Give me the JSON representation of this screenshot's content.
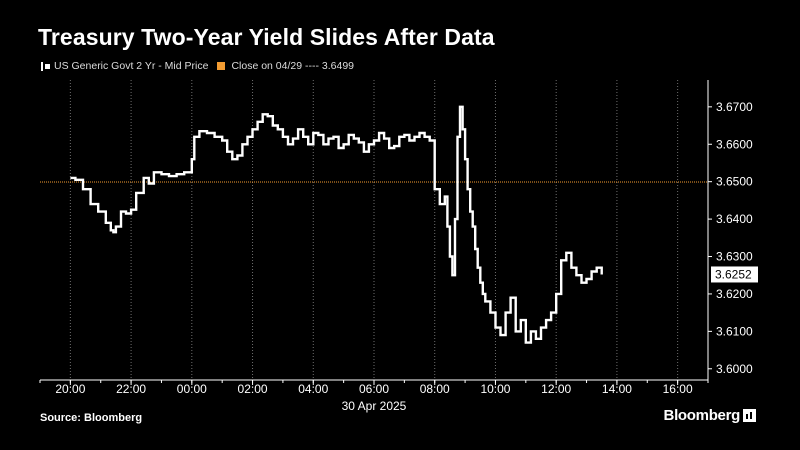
{
  "title": "Treasury Two-Year Yield Slides After Data",
  "legend": {
    "series_label": "US Generic Govt 2 Yr - Mid Price",
    "reference_label": "Close on 04/29 ---- 3.6499"
  },
  "source": "Source: Bloomberg",
  "brand": "Bloomberg",
  "colors": {
    "background": "#000000",
    "series": "#ffffff",
    "reference": "#f39c32",
    "grid": "#6e6e6e",
    "last_label_bg": "#ffffff",
    "last_label_text": "#000000"
  },
  "icons": {
    "series_legend": "series-swatch-icon",
    "reference_legend": "orange-square-icon",
    "brand_mark": "bloomberg-logo-icon"
  },
  "chart_data": {
    "type": "line",
    "title": "Treasury Two-Year Yield Slides After Data",
    "xlabel": "30 Apr 2025",
    "ylabel": "",
    "x_ticks": [
      "20:00",
      "22:00",
      "00:00",
      "02:00",
      "04:00",
      "06:00",
      "08:00",
      "10:00",
      "12:00",
      "14:00",
      "16:00"
    ],
    "x_range": [
      "19:00",
      "17:00"
    ],
    "y_ticks": [
      "3.6000",
      "3.6100",
      "3.6200",
      "3.6300",
      "3.6400",
      "3.6500",
      "3.6600",
      "3.6700"
    ],
    "ylim": [
      3.597,
      3.6745
    ],
    "grid": "vertical dotted",
    "legend_position": "top-left",
    "reference_line": {
      "name": "Close on 04/29",
      "value": 3.6499
    },
    "last_value_label": "3.6252",
    "series": [
      {
        "name": "US Generic Govt 2 Yr - Mid Price",
        "x": [
          "20:00",
          "20:10",
          "20:25",
          "20:40",
          "20:55",
          "21:10",
          "21:20",
          "21:25",
          "21:30",
          "21:40",
          "21:50",
          "22:00",
          "22:10",
          "22:25",
          "22:35",
          "22:45",
          "23:00",
          "23:15",
          "23:30",
          "23:45",
          "00:00",
          "00:05",
          "00:15",
          "00:30",
          "00:45",
          "01:00",
          "01:10",
          "01:20",
          "01:30",
          "01:40",
          "01:50",
          "02:00",
          "02:10",
          "02:20",
          "02:30",
          "02:40",
          "02:50",
          "03:00",
          "03:10",
          "03:20",
          "03:30",
          "03:40",
          "03:50",
          "04:00",
          "04:10",
          "04:20",
          "04:30",
          "04:40",
          "04:50",
          "05:00",
          "05:10",
          "05:20",
          "05:30",
          "05:40",
          "05:50",
          "06:00",
          "06:10",
          "06:20",
          "06:30",
          "06:40",
          "06:50",
          "07:00",
          "07:10",
          "07:20",
          "07:30",
          "07:40",
          "07:50",
          "08:00",
          "08:10",
          "08:20",
          "08:25",
          "08:30",
          "08:35",
          "08:40",
          "08:45",
          "08:50",
          "08:55",
          "09:00",
          "09:05",
          "09:10",
          "09:15",
          "09:20",
          "09:25",
          "09:30",
          "09:35",
          "09:40",
          "09:50",
          "10:00",
          "10:10",
          "10:20",
          "10:30",
          "10:40",
          "10:50",
          "11:00",
          "11:10",
          "11:20",
          "11:30",
          "11:40",
          "11:50",
          "12:00",
          "12:10",
          "12:20",
          "12:30",
          "12:40",
          "12:50",
          "13:00",
          "13:10",
          "13:20",
          "13:30"
        ],
        "values": [
          3.651,
          3.6505,
          3.648,
          3.644,
          3.642,
          3.639,
          3.637,
          3.6365,
          3.638,
          3.642,
          3.6415,
          3.6425,
          3.647,
          3.651,
          3.6495,
          3.6525,
          3.652,
          3.6515,
          3.652,
          3.6525,
          3.656,
          3.662,
          3.6635,
          3.663,
          3.662,
          3.661,
          3.658,
          3.656,
          3.657,
          3.66,
          3.662,
          3.664,
          3.666,
          3.668,
          3.6675,
          3.665,
          3.664,
          3.662,
          3.66,
          3.6615,
          3.664,
          3.662,
          3.66,
          3.663,
          3.6625,
          3.66,
          3.6615,
          3.662,
          3.659,
          3.66,
          3.6625,
          3.6615,
          3.6605,
          3.658,
          3.66,
          3.661,
          3.663,
          3.6615,
          3.659,
          3.6595,
          3.662,
          3.6625,
          3.661,
          3.662,
          3.663,
          3.662,
          3.661,
          3.648,
          3.644,
          3.646,
          3.638,
          3.63,
          3.625,
          3.64,
          3.662,
          3.67,
          3.664,
          3.656,
          3.648,
          3.642,
          3.638,
          3.632,
          3.627,
          3.623,
          3.62,
          3.618,
          3.615,
          3.611,
          3.609,
          3.615,
          3.619,
          3.61,
          3.613,
          3.607,
          3.61,
          3.608,
          3.611,
          3.613,
          3.615,
          3.62,
          3.629,
          3.631,
          3.627,
          3.625,
          3.623,
          3.624,
          3.626,
          3.627,
          3.6252
        ]
      }
    ]
  }
}
